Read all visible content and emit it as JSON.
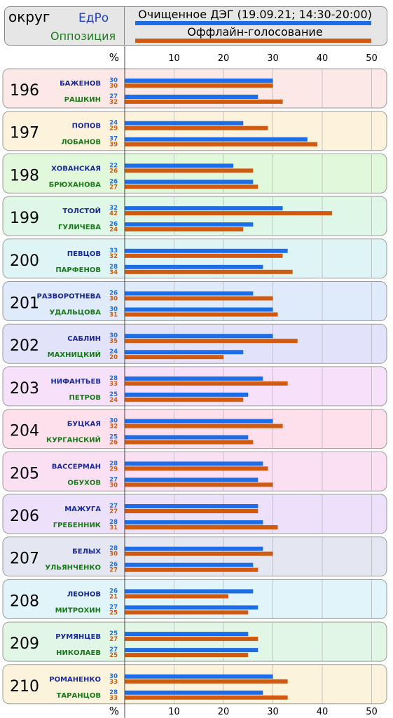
{
  "header": {
    "column_label": "округ",
    "party_label": "ЕдРо",
    "opposition_label": "Оппозиция",
    "legend_online": "Очищенное ДЭГ (19.09.21; 14:30-20:00)",
    "legend_offline": "Оффлайн-голосование"
  },
  "chart_data": {
    "type": "bar",
    "orientation": "horizontal",
    "axis_unit": "%",
    "xlim": [
      0,
      52
    ],
    "xticks": [
      10,
      20,
      30,
      40,
      50
    ],
    "grid": true,
    "series": [
      {
        "name": "Очищенное ДЭГ (19.09.21; 14:30-20:00)",
        "key": "online"
      },
      {
        "name": "Оффлайн-голосование",
        "key": "offline"
      }
    ],
    "colors": {
      "online": "#1e6de8",
      "offline": "#d05a10",
      "edro_text": "#1a2a9a",
      "opp_text": "#1a7a1a"
    },
    "districts": [
      {
        "id": "196",
        "bg": "#fde8e8",
        "candidates": [
          {
            "name": "БАЖЕНОВ",
            "party": "edro",
            "online": 30,
            "offline": 30
          },
          {
            "name": "РАШКИН",
            "party": "opp",
            "online": 27,
            "offline": 32
          }
        ]
      },
      {
        "id": "197",
        "bg": "#fdf3dc",
        "candidates": [
          {
            "name": "ПОПОВ",
            "party": "edro",
            "online": 24,
            "offline": 29
          },
          {
            "name": "ЛОБАНОВ",
            "party": "opp",
            "online": 37,
            "offline": 39
          }
        ]
      },
      {
        "id": "198",
        "bg": "#e2f8db",
        "candidates": [
          {
            "name": "ХОВАНСКАЯ",
            "party": "edro",
            "online": 22,
            "offline": 26
          },
          {
            "name": "БРЮХАНОВА",
            "party": "opp",
            "online": 26,
            "offline": 27
          }
        ]
      },
      {
        "id": "199",
        "bg": "#dff7e6",
        "candidates": [
          {
            "name": "ТОЛСТОЙ",
            "party": "edro",
            "online": 32,
            "offline": 42
          },
          {
            "name": "ГУЛИЧЕВА",
            "party": "opp",
            "online": 26,
            "offline": 24
          }
        ]
      },
      {
        "id": "200",
        "bg": "#dff5f5",
        "candidates": [
          {
            "name": "ПЕВЦОВ",
            "party": "edro",
            "online": 33,
            "offline": 32
          },
          {
            "name": "ПАРФЕНОВ",
            "party": "opp",
            "online": 28,
            "offline": 34
          }
        ]
      },
      {
        "id": "201",
        "bg": "#dfeafa",
        "candidates": [
          {
            "name": "РАЗВОРОТНЕВА",
            "party": "edro",
            "online": 26,
            "offline": 30
          },
          {
            "name": "УДАЛЬЦОВА",
            "party": "opp",
            "online": 30,
            "offline": 31
          }
        ]
      },
      {
        "id": "202",
        "bg": "#e2e2fa",
        "candidates": [
          {
            "name": "САБЛИН",
            "party": "edro",
            "online": 30,
            "offline": 35
          },
          {
            "name": "МАХНИЦКИЙ",
            "party": "opp",
            "online": 24,
            "offline": 20
          }
        ]
      },
      {
        "id": "203",
        "bg": "#f6e0fa",
        "candidates": [
          {
            "name": "НИФАНТЬЕВ",
            "party": "edro",
            "online": 28,
            "offline": 33
          },
          {
            "name": "ПЕТРОВ",
            "party": "opp",
            "online": 25,
            "offline": 24
          }
        ]
      },
      {
        "id": "204",
        "bg": "#fde0ec",
        "candidates": [
          {
            "name": "БУЦКАЯ",
            "party": "edro",
            "online": 30,
            "offline": 32
          },
          {
            "name": "КУРГАНСКИЙ",
            "party": "opp",
            "online": 25,
            "offline": 26
          }
        ]
      },
      {
        "id": "205",
        "bg": "#fbe0f4",
        "candidates": [
          {
            "name": "ВАССЕРМАН",
            "party": "edro",
            "online": 28,
            "offline": 29
          },
          {
            "name": "ОБУХОВ",
            "party": "opp",
            "online": 27,
            "offline": 30
          }
        ]
      },
      {
        "id": "206",
        "bg": "#ece0fa",
        "candidates": [
          {
            "name": "МАЖУГА",
            "party": "edro",
            "online": 27,
            "offline": 27
          },
          {
            "name": "ГРЕБЕННИК",
            "party": "opp",
            "online": 28,
            "offline": 31
          }
        ]
      },
      {
        "id": "207",
        "bg": "#e4e7f2",
        "candidates": [
          {
            "name": "БЕЛЫХ",
            "party": "edro",
            "online": 28,
            "offline": 30
          },
          {
            "name": "УЛЬЯНЧЕНКО",
            "party": "opp",
            "online": 26,
            "offline": 27
          }
        ]
      },
      {
        "id": "208",
        "bg": "#e0f4fa",
        "candidates": [
          {
            "name": "ЛЕОНОВ",
            "party": "edro",
            "online": 26,
            "offline": 21
          },
          {
            "name": "МИТРОХИН",
            "party": "opp",
            "online": 27,
            "offline": 25
          }
        ]
      },
      {
        "id": "209",
        "bg": "#e2f6e6",
        "candidates": [
          {
            "name": "РУМЯНЦЕВ",
            "party": "edro",
            "online": 25,
            "offline": 27
          },
          {
            "name": "НИКОЛАЕВ",
            "party": "opp",
            "online": 27,
            "offline": 25
          }
        ]
      },
      {
        "id": "210",
        "bg": "#fbf3dc",
        "candidates": [
          {
            "name": "РОМАНЕНКО",
            "party": "edro",
            "online": 30,
            "offline": 33
          },
          {
            "name": "ТАРАНЦОВ",
            "party": "opp",
            "online": 28,
            "offline": 33
          }
        ]
      }
    ]
  }
}
